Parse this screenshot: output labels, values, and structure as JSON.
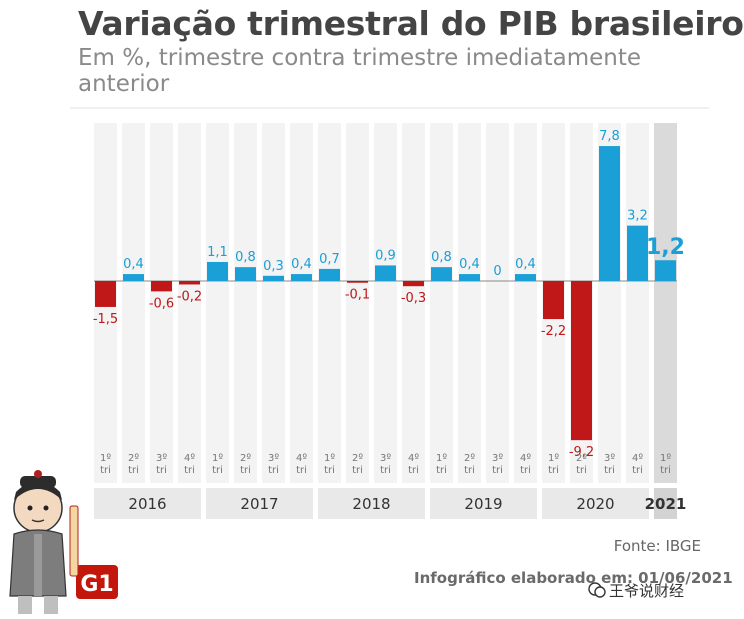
{
  "header": {
    "title": "Variação trimestral do PIB brasileiro",
    "subtitle": "Em %, trimestre contra trimestre imediatamente anterior"
  },
  "footer": {
    "source": "Fonte: IBGE",
    "credit": "Infográfico elaborado em: 01/06/2021",
    "watermark": "王爷说财经"
  },
  "colors": {
    "positive": "#1a9fd6",
    "negative": "#c01718",
    "highlight": "#dadada"
  },
  "chart_data": {
    "type": "bar",
    "ylim": [
      -9.2,
      7.8
    ],
    "grid": false,
    "quarter_label_line1": [
      "1º",
      "2º",
      "3º",
      "4º",
      "1º",
      "2º",
      "3º",
      "4º",
      "1º",
      "2º",
      "3º",
      "4º",
      "1º",
      "2º",
      "3º",
      "4º",
      "1º",
      "2º",
      "3º",
      "4º",
      "1º"
    ],
    "quarter_label_line2": "tri",
    "years": [
      "2016",
      "2017",
      "2018",
      "2019",
      "2020",
      "2021"
    ],
    "values": [
      -1.5,
      0.4,
      -0.6,
      -0.2,
      1.1,
      0.8,
      0.3,
      0.4,
      0.7,
      -0.1,
      0.9,
      -0.3,
      0.8,
      0.4,
      0,
      0.4,
      -2.2,
      -9.2,
      7.8,
      3.2,
      1.2
    ],
    "value_labels": [
      "-1,5",
      "0,4",
      "-0,6",
      "-0,2",
      "1,1",
      "0,8",
      "0,3",
      "0,4",
      "0,7",
      "-0,1",
      "0,9",
      "-0,3",
      "0,8",
      "0,4",
      "0",
      "0,4",
      "-2,2",
      "-9,2",
      "7,8",
      "3,2",
      "1,2"
    ],
    "highlight_index": 20
  }
}
